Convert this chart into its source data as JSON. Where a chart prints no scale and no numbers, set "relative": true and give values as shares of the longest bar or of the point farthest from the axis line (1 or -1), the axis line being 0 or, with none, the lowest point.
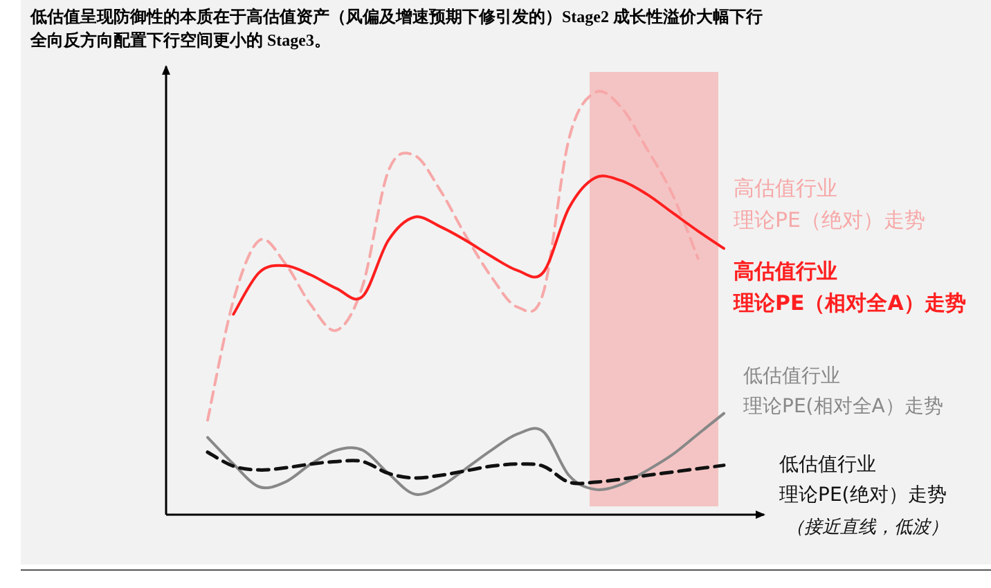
{
  "chart_data": {
    "type": "line",
    "relative": true,
    "title": "低估值呈现防御性的本质在于高估值资产（风偏及增速预期下修引发的）Stage2 成长性溢价大幅下行",
    "subtitle": "全向反方向配置下行空间更小的 Stage3。",
    "categories": [
      null,
      null,
      null,
      null,
      null,
      null,
      null,
      null,
      null,
      null,
      null,
      null,
      null,
      null,
      null,
      null,
      null,
      null,
      null,
      null,
      null
    ],
    "series": [
      {
        "name": "高估值行业理论PE（绝对）走势",
        "color": "#f7a8a8",
        "line_style": "dashed",
        "values": [
          0.224,
          0.508,
          0.65,
          0.596,
          0.497,
          0.437,
          0.541,
          0.814,
          0.852,
          0.77,
          0.661,
          0.563,
          0.492,
          0.525,
          0.891,
          1.0,
          0.967,
          0.869,
          0.76,
          0.607,
          null
        ]
      },
      {
        "name": "高估值行业理论PE（相对全A）走势",
        "color": "#ff1f1f",
        "line_style": "solid",
        "values": [
          null,
          0.475,
          0.574,
          0.59,
          0.568,
          0.536,
          0.517,
          0.65,
          0.705,
          0.683,
          0.65,
          0.612,
          0.579,
          0.574,
          0.727,
          0.798,
          0.792,
          0.76,
          0.716,
          0.672,
          0.631
        ]
      },
      {
        "name": "低估值行业理论PE(相对全A）走势",
        "color": "#888888",
        "line_style": "solid",
        "values": [
          0.183,
          0.12,
          0.066,
          0.077,
          0.12,
          0.153,
          0.153,
          0.098,
          0.049,
          0.066,
          0.109,
          0.153,
          0.191,
          0.197,
          0.093,
          0.06,
          0.071,
          0.104,
          0.142,
          0.191,
          0.24
        ]
      },
      {
        "name": "低估值行业理论PE(绝对）走势",
        "color": "#111111",
        "line_style": "dashed",
        "values": [
          0.148,
          0.115,
          0.106,
          0.111,
          0.12,
          0.126,
          0.126,
          0.098,
          0.087,
          0.093,
          0.104,
          0.115,
          0.12,
          0.115,
          0.077,
          0.077,
          0.084,
          0.093,
          0.101,
          0.109,
          0.117
        ]
      }
    ],
    "annotations": [
      "（接近直线，低波）"
    ]
  }
}
